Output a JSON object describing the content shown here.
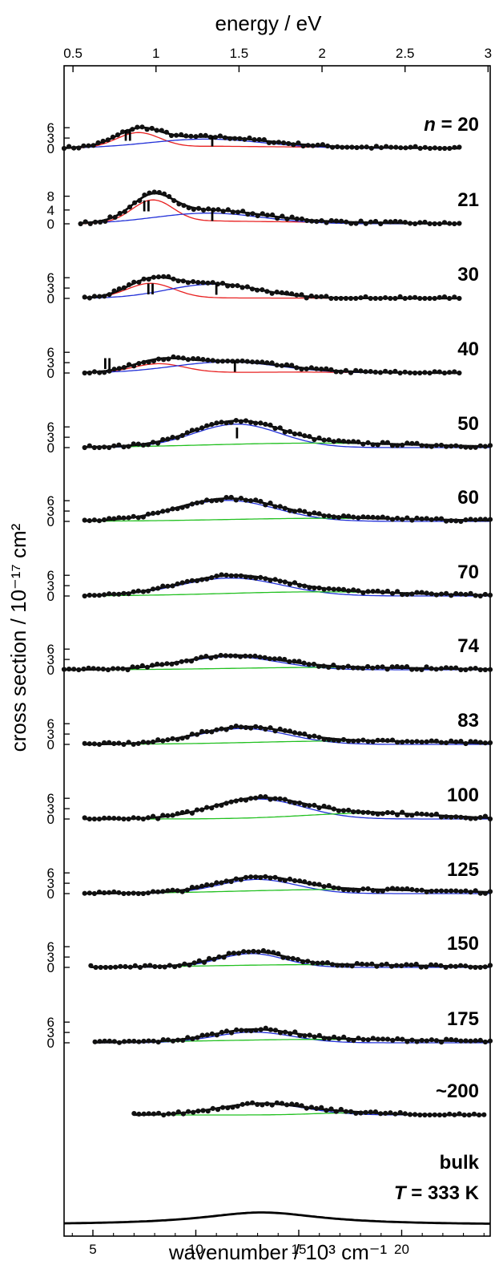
{
  "chart_data": {
    "type": "line",
    "title": "",
    "xlabel": "wavenumber / 10³ cm⁻¹",
    "ylabel": "cross section / 10⁻¹⁷ cm²",
    "top_xlabel": "energy / eV",
    "xlim": [
      3.6,
      24.3
    ],
    "x_ticks": [
      5,
      10,
      15,
      20
    ],
    "top_ticks": [
      "0.5",
      "1",
      "1.5",
      "2",
      "2.5",
      "3"
    ],
    "top_tick_values": [
      0.5,
      1,
      1.5,
      2,
      2.5,
      3
    ],
    "component_colors": {
      "total": "#000000",
      "I": "#2230d8",
      "II": "#e82020",
      "high": "#22c020"
    },
    "panels": [
      {
        "label": "n = 20",
        "label_prefix": "n",
        "label_suffix": " = 20",
        "ylim": [
          0,
          7.5
        ],
        "yticks": [
          "0",
          "3",
          "6"
        ],
        "ytick_values": [
          0,
          3,
          6
        ],
        "x_range": [
          3.6,
          22.8
        ],
        "components": [
          {
            "name": "II",
            "type": "gauss",
            "center": 7.2,
            "width": 1.05,
            "amp": 4.3
          },
          {
            "name": "I",
            "type": "gauss",
            "center": 10.5,
            "width": 2.8,
            "amp": 2.7
          },
          {
            "name": "I-tail",
            "type": "gauss",
            "center": 10.5,
            "width": 7,
            "amp": 0
          }
        ],
        "tail": {
          "start": 3.8,
          "end": 22.8,
          "peak": 11,
          "amp": 0.7
        },
        "labels": [
          {
            "text": "II",
            "x": 6.7,
            "y": 2.2
          },
          {
            "text": "I",
            "x": 10.8,
            "y": 0.6
          }
        ]
      },
      {
        "label": "21",
        "ylim": [
          0,
          9.5
        ],
        "yticks": [
          "0",
          "4",
          "8"
        ],
        "ytick_values": [
          0,
          4,
          8
        ],
        "x_range": [
          4.4,
          22.8
        ],
        "components": [
          {
            "name": "II",
            "type": "gauss",
            "center": 7.9,
            "width": 1.0,
            "amp": 6.5
          },
          {
            "name": "I",
            "type": "gauss",
            "center": 10.6,
            "width": 2.6,
            "amp": 3.1
          }
        ],
        "tail": {
          "start": 4.4,
          "end": 22.8,
          "peak": 11,
          "amp": 0.9
        },
        "labels": [
          {
            "text": "II",
            "x": 7.6,
            "y": 3.6
          },
          {
            "text": "I",
            "x": 10.8,
            "y": 0.8
          }
        ]
      },
      {
        "label": "30",
        "ylim": [
          0,
          7.5
        ],
        "yticks": [
          "0",
          "3",
          "6"
        ],
        "ytick_values": [
          0,
          3,
          6
        ],
        "x_range": [
          4.6,
          22.8
        ],
        "components": [
          {
            "name": "II",
            "type": "gauss",
            "center": 7.8,
            "width": 1.15,
            "amp": 4.3
          },
          {
            "name": "I",
            "type": "gauss",
            "center": 10.8,
            "width": 2.2,
            "amp": 4.1
          }
        ],
        "tail": {
          "start": 4.6,
          "end": 22.8,
          "peak": 11,
          "amp": 0.15
        },
        "labels": [
          {
            "text": "II",
            "x": 7.8,
            "y": 1.2
          },
          {
            "text": "I",
            "x": 11.0,
            "y": 1.0
          }
        ]
      },
      {
        "label": "40",
        "ylim": [
          0,
          7.5
        ],
        "yticks": [
          "0",
          "3",
          "6"
        ],
        "ytick_values": [
          0,
          3,
          6
        ],
        "x_range": [
          4.6,
          22.8
        ],
        "components": [
          {
            "name": "II",
            "type": "gauss",
            "center": 8.2,
            "width": 1.25,
            "amp": 2.6
          },
          {
            "name": "I",
            "type": "gauss",
            "center": 11.5,
            "width": 2.6,
            "amp": 3.2
          }
        ],
        "tail": {
          "start": 4.6,
          "end": 22.8,
          "peak": 15,
          "amp": 0.3
        },
        "labels": [
          {
            "text": "II",
            "x": 5.7,
            "y": 1.2
          },
          {
            "text": "I",
            "x": 11.9,
            "y": 0.4
          }
        ]
      },
      {
        "label": "50",
        "ylim": [
          0,
          7.5
        ],
        "yticks": [
          "0",
          "3",
          "6"
        ],
        "ytick_values": [
          0,
          3,
          6
        ],
        "x_range": [
          4.6,
          24.3
        ],
        "components": [
          {
            "name": "I",
            "type": "gauss",
            "center": 12.0,
            "width": 2.1,
            "amp": 6.8
          },
          {
            "name": "high",
            "type": "gauss",
            "center": 15.8,
            "width": 5.2,
            "amp": 1.3
          }
        ],
        "labels": [
          {
            "text": "I",
            "x": 12.0,
            "y": 2.7
          }
        ]
      },
      {
        "label": "60",
        "ylim": [
          0,
          7.5
        ],
        "yticks": [
          "0",
          "3",
          "6"
        ],
        "ytick_values": [
          0,
          3,
          6
        ],
        "x_range": [
          4.6,
          24.3
        ],
        "components": [
          {
            "name": "I",
            "type": "gauss",
            "center": 11.5,
            "width": 2.4,
            "amp": 6.1
          },
          {
            "name": "high",
            "type": "gauss",
            "center": 16.5,
            "width": 5.0,
            "amp": 0.9
          }
        ],
        "labels": []
      },
      {
        "label": "70",
        "ylim": [
          0,
          7.5
        ],
        "yticks": [
          "0",
          "3",
          "6"
        ],
        "ytick_values": [
          0,
          3,
          6
        ],
        "x_range": [
          4.6,
          24.3
        ],
        "components": [
          {
            "name": "I",
            "type": "gauss",
            "center": 11.7,
            "width": 2.5,
            "amp": 5.2
          },
          {
            "name": "high",
            "type": "gauss",
            "center": 16.0,
            "width": 4.6,
            "amp": 1.2
          }
        ],
        "labels": []
      },
      {
        "label": "74",
        "ylim": [
          0,
          7.5
        ],
        "yticks": [
          "0",
          "3",
          "6"
        ],
        "ytick_values": [
          0,
          3,
          6
        ],
        "x_range": [
          3.6,
          24.3
        ],
        "components": [
          {
            "name": "I",
            "type": "gauss",
            "center": 11.7,
            "width": 2.3,
            "amp": 3.8
          },
          {
            "name": "high",
            "type": "gauss",
            "center": 16.5,
            "width": 4.6,
            "amp": 0.7
          }
        ],
        "labels": []
      },
      {
        "label": "83",
        "ylim": [
          0,
          7.5
        ],
        "yticks": [
          "0",
          "3",
          "6"
        ],
        "ytick_values": [
          0,
          3,
          6
        ],
        "x_range": [
          4.6,
          24.3
        ],
        "components": [
          {
            "name": "I",
            "type": "gauss",
            "center": 12.3,
            "width": 2.2,
            "amp": 4.6
          },
          {
            "name": "high",
            "type": "gauss",
            "center": 17.5,
            "width": 4.6,
            "amp": 1.0
          }
        ],
        "labels": []
      },
      {
        "label": "100",
        "ylim": [
          0,
          7.5
        ],
        "yticks": [
          "0",
          "3",
          "6"
        ],
        "ytick_values": [
          0,
          3,
          6
        ],
        "x_range": [
          4.6,
          24.3
        ],
        "components": [
          {
            "name": "I",
            "type": "gauss",
            "center": 13.0,
            "width": 2.2,
            "amp": 5.8
          },
          {
            "name": "high",
            "type": "gauss",
            "center": 18.5,
            "width": 3.2,
            "amp": 1.7
          }
        ],
        "labels": []
      },
      {
        "label": "125",
        "ylim": [
          0,
          7.5
        ],
        "yticks": [
          "0",
          "3",
          "6"
        ],
        "ytick_values": [
          0,
          3,
          6
        ],
        "x_range": [
          4.6,
          24.3
        ],
        "components": [
          {
            "name": "I",
            "type": "gauss",
            "center": 13.0,
            "width": 1.9,
            "amp": 4.1
          },
          {
            "name": "high",
            "type": "gauss",
            "center": 17.2,
            "width": 5.0,
            "amp": 1.2
          }
        ],
        "labels": []
      },
      {
        "label": "150",
        "ylim": [
          0,
          7.5
        ],
        "yticks": [
          "0",
          "3",
          "6"
        ],
        "ytick_values": [
          0,
          3,
          6
        ],
        "x_range": [
          4.9,
          24.3
        ],
        "components": [
          {
            "name": "I",
            "type": "gauss",
            "center": 12.7,
            "width": 1.6,
            "amp": 4.0
          },
          {
            "name": "high",
            "type": "gauss",
            "center": 16.0,
            "width": 5.0,
            "amp": 0.8
          }
        ],
        "labels": []
      },
      {
        "label": "175",
        "ylim": [
          0,
          7.5
        ],
        "yticks": [
          "0",
          "3",
          "6"
        ],
        "ytick_values": [
          0,
          3,
          6
        ],
        "x_range": [
          5.1,
          24.3
        ],
        "components": [
          {
            "name": "I",
            "type": "gauss",
            "center": 12.8,
            "width": 1.9,
            "amp": 3.1
          },
          {
            "name": "high",
            "type": "gauss",
            "center": 16.5,
            "width": 5.6,
            "amp": 1.0
          }
        ],
        "labels": []
      },
      {
        "label": "~200",
        "ylim": [
          0,
          7.5
        ],
        "yticks": [],
        "ytick_values": [],
        "x_range": [
          7.0,
          24.0
        ],
        "components": [
          {
            "name": "I",
            "type": "gauss",
            "center": 13.2,
            "width": 2.1,
            "amp": 3.3
          },
          {
            "name": "high",
            "type": "gauss",
            "center": 17.5,
            "width": 1.8,
            "amp": 0.6
          }
        ],
        "labels": []
      },
      {
        "label": "bulk",
        "label2_prefix": "T",
        "label2_suffix": " = 333 K",
        "ylim": [
          0,
          7.5
        ],
        "yticks": [],
        "ytick_values": [],
        "x_range": [
          3.6,
          24.3
        ],
        "bulk": true,
        "components": [
          {
            "name": "total",
            "type": "lorentz",
            "center": 13.2,
            "width": 3.6,
            "amp": 3.6
          }
        ],
        "labels": []
      }
    ]
  }
}
